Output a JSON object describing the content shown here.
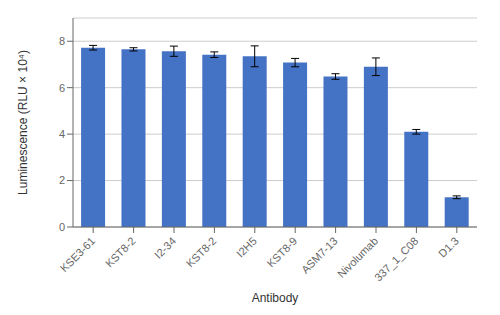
{
  "chart_data": {
    "type": "bar",
    "categories": [
      "KSE3-61",
      "KST8-2",
      "I2-34",
      "KST8-2",
      "I2H5",
      "KST8-9",
      "ASM7-13",
      "Nivolumab",
      "337_1_C08",
      "D1.3"
    ],
    "values": [
      7.72,
      7.65,
      7.57,
      7.42,
      7.35,
      7.08,
      6.48,
      6.9,
      4.1,
      1.28
    ],
    "errors": [
      0.1,
      0.07,
      0.22,
      0.12,
      0.45,
      0.18,
      0.12,
      0.38,
      0.1,
      0.06
    ],
    "color": "#4472C4",
    "xlabel": "Antibody",
    "ylabel": "Luminescence (RLU × 10⁴)",
    "ylim": [
      0,
      9
    ],
    "yticks": [
      0,
      2,
      4,
      6,
      8
    ],
    "grid": true
  }
}
